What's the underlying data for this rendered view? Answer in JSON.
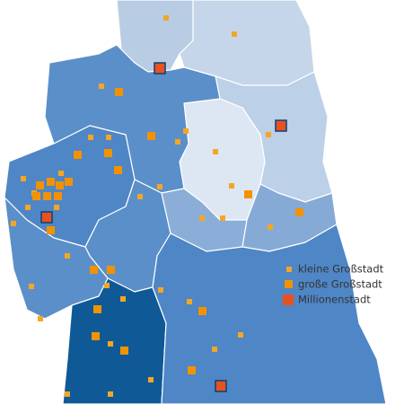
{
  "legend": [
    {
      "label": "kleine Großstadt"
    },
    {
      "label": "große Großstadt"
    },
    {
      "label": "Millionenstadt"
    }
  ]
}
